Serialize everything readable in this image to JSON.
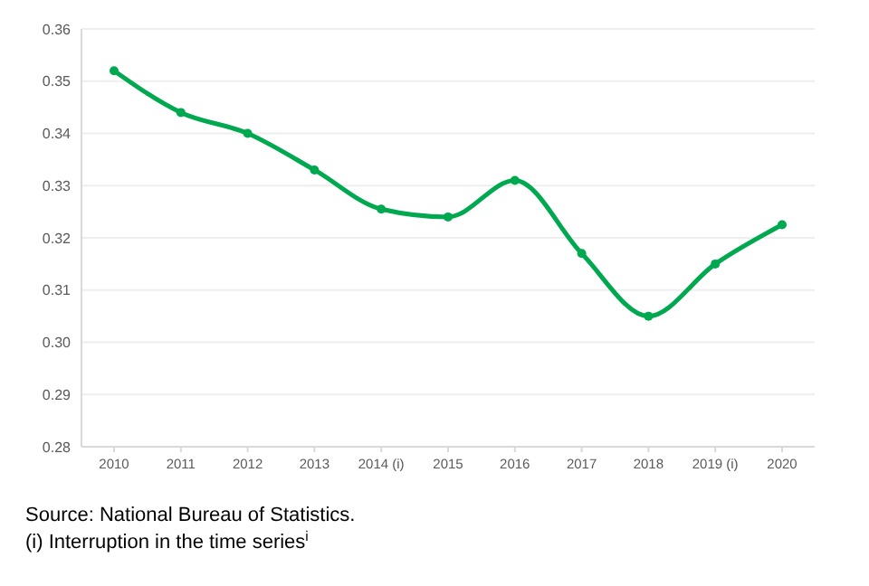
{
  "chart_data": {
    "type": "line",
    "categories": [
      "2010",
      "2011",
      "2012",
      "2013",
      "2014 (i)",
      "2015",
      "2016",
      "2017",
      "2018",
      "2019 (i)",
      "2020"
    ],
    "series": [
      {
        "color": "#00a94f",
        "values": [
          0.352,
          0.344,
          0.34,
          0.333,
          0.3255,
          0.324,
          0.331,
          0.317,
          0.305,
          0.315,
          0.3225
        ]
      }
    ],
    "ylim": [
      0.28,
      0.36
    ],
    "yticks": [
      0.28,
      0.29,
      {
        "value": 0.3,
        "label": "0.30"
      },
      0.31,
      0.32,
      0.33,
      0.34,
      0.35,
      0.36
    ],
    "grid": "y",
    "marker": "circle",
    "line_style": "solid",
    "annotations": [
      "Source: National Bureau of Statistics.",
      "(i) Interruption in the time series$^{i}$"
    ]
  }
}
